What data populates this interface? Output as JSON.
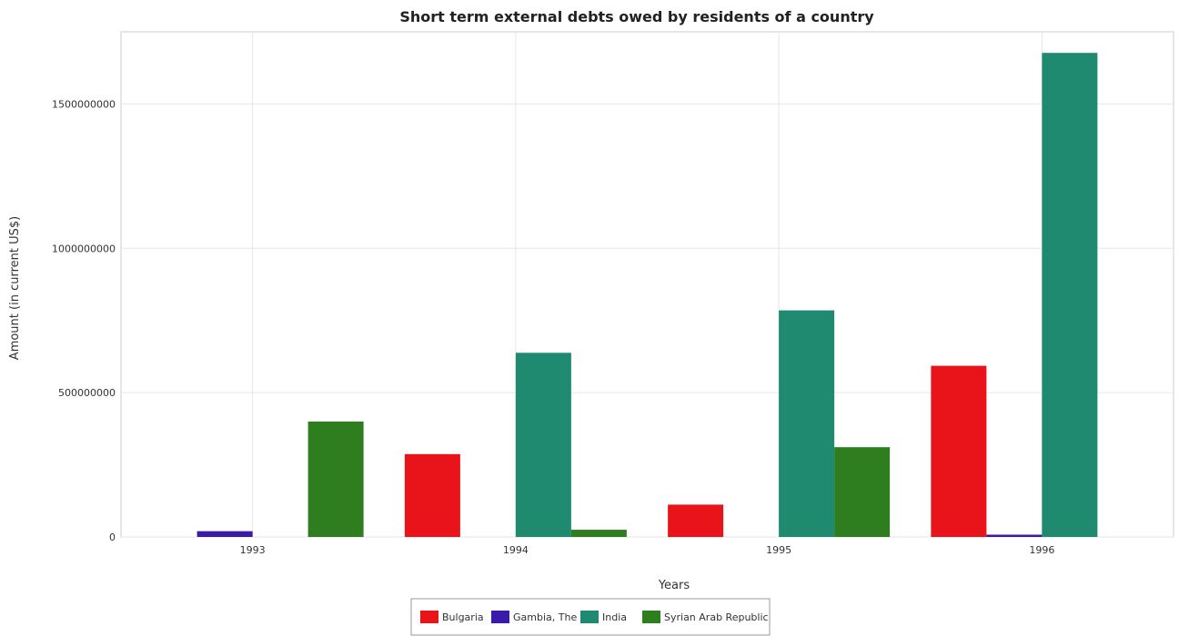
{
  "chart_data": {
    "type": "bar",
    "title": "Short term external debts owed by residents of a country",
    "xlabel": "Years",
    "ylabel": "Amount (in current US$)",
    "categories": [
      "1993",
      "1994",
      "1995",
      "1996"
    ],
    "series": [
      {
        "name": "Bulgaria",
        "color": "#e8141a",
        "values": [
          0,
          287000000,
          112000000,
          593000000
        ]
      },
      {
        "name": "Gambia, The",
        "color": "#3a1aa8",
        "values": [
          20000000,
          0,
          0,
          8000000
        ]
      },
      {
        "name": "India",
        "color": "#1f8a70",
        "values": [
          0,
          638000000,
          785000000,
          1677000000
        ]
      },
      {
        "name": "Syrian Arab Republic",
        "color": "#2e7d1e",
        "values": [
          400000000,
          25000000,
          311000000,
          0
        ]
      }
    ],
    "ylim": [
      0,
      1750000000
    ],
    "yticks": [
      0,
      500000000,
      1000000000,
      1500000000
    ],
    "ytick_labels": [
      "0",
      "500000000",
      "1000000000",
      "1500000000"
    ],
    "grid": true,
    "legend_position": "bottom-center"
  }
}
